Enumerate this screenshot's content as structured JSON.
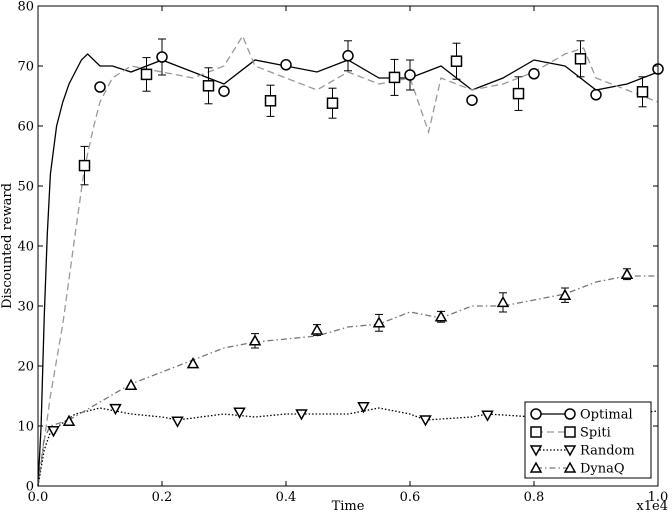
{
  "chart_data": {
    "type": "line",
    "xlabel": "Time",
    "ylabel": "Discounted reward",
    "x_scale_label": "x1e4",
    "xlim": [
      0,
      1.0
    ],
    "ylim": [
      0,
      80
    ],
    "x_ticks": [
      0.0,
      0.2,
      0.4,
      0.6,
      0.8,
      1.0
    ],
    "x_tick_labels": [
      "0.0",
      "0.2",
      "0.4",
      "0.6",
      "0.8",
      "1.0"
    ],
    "y_ticks": [
      0,
      10,
      20,
      30,
      40,
      50,
      60,
      70,
      80
    ],
    "y_tick_labels": [
      "0",
      "10",
      "20",
      "30",
      "40",
      "50",
      "60",
      "70",
      "80"
    ],
    "grid": false,
    "legend_position": "bottom-right",
    "series": [
      {
        "name": "Optimal",
        "color": "#000000",
        "dash": "solid",
        "marker": "circle",
        "x": [
          0.0,
          0.005,
          0.01,
          0.015,
          0.02,
          0.03,
          0.04,
          0.05,
          0.06,
          0.07,
          0.08,
          0.1,
          0.12,
          0.15,
          0.2,
          0.25,
          0.3,
          0.35,
          0.4,
          0.45,
          0.5,
          0.55,
          0.6,
          0.65,
          0.7,
          0.75,
          0.8,
          0.85,
          0.9,
          0.95,
          1.0
        ],
        "y": [
          0,
          10,
          28,
          42,
          52,
          60,
          64,
          67,
          69,
          71,
          72,
          70,
          70,
          69,
          71,
          69,
          67,
          71,
          70,
          69,
          71,
          68,
          68,
          70,
          66,
          68,
          71,
          70,
          66,
          67,
          69
        ],
        "markers": [
          [
            0.1,
            66.5,
            0
          ],
          [
            0.2,
            71.5,
            3
          ],
          [
            0.3,
            65.8,
            0
          ],
          [
            0.4,
            70.2,
            0
          ],
          [
            0.5,
            71.7,
            2.5
          ],
          [
            0.6,
            68.5,
            2.5
          ],
          [
            0.7,
            64.3,
            0
          ],
          [
            0.8,
            68.7,
            0
          ],
          [
            0.9,
            65.2,
            0
          ],
          [
            1.0,
            69.5,
            0
          ]
        ]
      },
      {
        "name": "Spiti",
        "color": "#999999",
        "dash": "dashed",
        "marker": "square",
        "x": [
          0.0,
          0.02,
          0.04,
          0.06,
          0.075,
          0.09,
          0.1,
          0.12,
          0.15,
          0.2,
          0.25,
          0.3,
          0.33,
          0.35,
          0.4,
          0.45,
          0.5,
          0.55,
          0.6,
          0.63,
          0.65,
          0.7,
          0.75,
          0.8,
          0.85,
          0.88,
          0.9,
          0.95,
          1.0
        ],
        "y": [
          0,
          15,
          27,
          42,
          53,
          60,
          64,
          68,
          70,
          69,
          68,
          70,
          75,
          70,
          68,
          66,
          69,
          67,
          68,
          59,
          68,
          66,
          67,
          69,
          72,
          73,
          68,
          66,
          64
        ],
        "markers": [
          [
            0.075,
            53.4,
            3.2
          ],
          [
            0.175,
            68.6,
            2.8
          ],
          [
            0.275,
            66.7,
            3
          ],
          [
            0.375,
            64.2,
            2.6
          ],
          [
            0.475,
            63.8,
            2.5
          ],
          [
            0.575,
            68.1,
            3
          ],
          [
            0.675,
            70.8,
            3
          ],
          [
            0.775,
            65.4,
            2.8
          ],
          [
            0.875,
            71.2,
            3
          ],
          [
            0.975,
            65.7,
            2.5
          ]
        ]
      },
      {
        "name": "Random",
        "color": "#000000",
        "dash": "dotted",
        "marker": "triangle-down",
        "x": [
          0.0,
          0.01,
          0.02,
          0.04,
          0.06,
          0.08,
          0.1,
          0.125,
          0.15,
          0.2,
          0.225,
          0.3,
          0.35,
          0.4,
          0.45,
          0.5,
          0.55,
          0.6,
          0.625,
          0.7,
          0.725,
          0.8,
          0.85,
          0.9,
          0.95,
          1.0
        ],
        "y": [
          0,
          6,
          9,
          10.5,
          12,
          12.5,
          13,
          12.5,
          12,
          11.5,
          11,
          12,
          11.5,
          12,
          12,
          12,
          13,
          12,
          11,
          11.5,
          12,
          11.5,
          12,
          11,
          12,
          12.5
        ],
        "markers": [
          [
            0.025,
            9.2,
            0
          ],
          [
            0.125,
            12.9,
            0
          ],
          [
            0.225,
            10.8,
            0
          ],
          [
            0.325,
            12.3,
            0
          ],
          [
            0.425,
            12,
            0
          ],
          [
            0.525,
            13.2,
            0
          ],
          [
            0.625,
            11,
            0
          ],
          [
            0.725,
            11.8,
            0
          ],
          [
            0.825,
            12.2,
            0
          ],
          [
            0.925,
            11.6,
            0
          ]
        ]
      },
      {
        "name": "DynaQ",
        "color": "#777777",
        "dash": "dashdot",
        "marker": "triangle-up",
        "x": [
          0.0,
          0.01,
          0.02,
          0.05,
          0.1,
          0.15,
          0.2,
          0.25,
          0.3,
          0.35,
          0.4,
          0.45,
          0.5,
          0.55,
          0.6,
          0.65,
          0.7,
          0.75,
          0.8,
          0.85,
          0.9,
          0.95,
          1.0
        ],
        "y": [
          0,
          8,
          10,
          11,
          14,
          17,
          19,
          21,
          23,
          24,
          24.5,
          25,
          26.5,
          27,
          29,
          28,
          30,
          30,
          31,
          32,
          34,
          35,
          35
        ],
        "markers": [
          [
            0.05,
            10.8,
            0
          ],
          [
            0.15,
            16.8,
            0
          ],
          [
            0.25,
            20.4,
            0
          ],
          [
            0.35,
            24.2,
            1.2
          ],
          [
            0.45,
            26,
            0.9
          ],
          [
            0.55,
            27.2,
            1.4
          ],
          [
            0.65,
            28.2,
            0.9
          ],
          [
            0.75,
            30.6,
            1.6
          ],
          [
            0.85,
            31.8,
            1.2
          ],
          [
            0.95,
            35.3,
            0.9
          ]
        ]
      }
    ]
  }
}
